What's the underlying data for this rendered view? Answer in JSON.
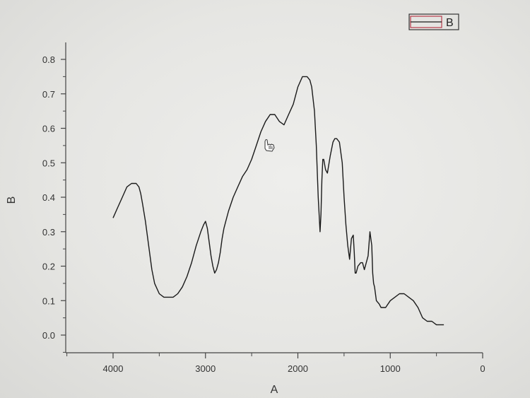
{
  "chart_data": {
    "type": "line",
    "xlabel": "A",
    "ylabel": "B",
    "xlim": [
      4500,
      0
    ],
    "ylim": [
      -0.05,
      0.85
    ],
    "x_reversed": true,
    "x_ticks": [
      4000,
      3000,
      2000,
      1000,
      0
    ],
    "x_tick_labels": [
      "4000",
      "3000",
      "2000",
      "1000",
      "0"
    ],
    "y_ticks": [
      0.0,
      0.1,
      0.2,
      0.3,
      0.4,
      0.5,
      0.6,
      0.7,
      0.8
    ],
    "y_tick_labels": [
      "0.0",
      "0.1",
      "0.2",
      "0.3",
      "0.4",
      "0.5",
      "0.6",
      "0.7",
      "0.8"
    ],
    "grid": false,
    "legend_position": "top-right",
    "series": [
      {
        "name": "B",
        "color": "#1a1a1a",
        "legend_color": "#b83a4a",
        "x": [
          4000,
          3950,
          3900,
          3850,
          3800,
          3750,
          3720,
          3700,
          3680,
          3650,
          3620,
          3600,
          3580,
          3550,
          3500,
          3450,
          3400,
          3350,
          3300,
          3250,
          3200,
          3150,
          3100,
          3050,
          3020,
          3000,
          2980,
          2960,
          2940,
          2920,
          2900,
          2880,
          2860,
          2840,
          2820,
          2800,
          2780,
          2750,
          2700,
          2650,
          2600,
          2550,
          2500,
          2450,
          2400,
          2350,
          2300,
          2250,
          2200,
          2150,
          2100,
          2050,
          2000,
          1950,
          1900,
          1870,
          1850,
          1820,
          1800,
          1780,
          1760,
          1750,
          1740,
          1730,
          1720,
          1700,
          1680,
          1650,
          1620,
          1600,
          1580,
          1550,
          1520,
          1500,
          1480,
          1460,
          1440,
          1420,
          1400,
          1390,
          1380,
          1370,
          1350,
          1320,
          1300,
          1280,
          1260,
          1240,
          1220,
          1200,
          1190,
          1180,
          1170,
          1160,
          1150,
          1120,
          1100,
          1050,
          1000,
          950,
          900,
          850,
          800,
          750,
          700,
          650,
          600,
          550,
          500,
          450,
          420
        ],
        "y": [
          0.34,
          0.37,
          0.4,
          0.43,
          0.44,
          0.44,
          0.43,
          0.41,
          0.38,
          0.33,
          0.27,
          0.23,
          0.19,
          0.15,
          0.12,
          0.11,
          0.11,
          0.11,
          0.12,
          0.14,
          0.17,
          0.21,
          0.26,
          0.3,
          0.32,
          0.33,
          0.31,
          0.27,
          0.23,
          0.2,
          0.18,
          0.19,
          0.21,
          0.24,
          0.28,
          0.31,
          0.33,
          0.36,
          0.4,
          0.43,
          0.46,
          0.48,
          0.51,
          0.55,
          0.59,
          0.62,
          0.64,
          0.64,
          0.62,
          0.61,
          0.64,
          0.67,
          0.72,
          0.75,
          0.75,
          0.74,
          0.72,
          0.65,
          0.55,
          0.4,
          0.3,
          0.35,
          0.45,
          0.51,
          0.51,
          0.48,
          0.47,
          0.52,
          0.56,
          0.57,
          0.57,
          0.56,
          0.5,
          0.4,
          0.32,
          0.26,
          0.22,
          0.28,
          0.29,
          0.24,
          0.18,
          0.18,
          0.2,
          0.21,
          0.21,
          0.19,
          0.21,
          0.23,
          0.3,
          0.26,
          0.18,
          0.15,
          0.14,
          0.12,
          0.1,
          0.09,
          0.08,
          0.08,
          0.1,
          0.11,
          0.12,
          0.12,
          0.11,
          0.1,
          0.08,
          0.05,
          0.04,
          0.04,
          0.03,
          0.03,
          0.03
        ]
      }
    ]
  }
}
